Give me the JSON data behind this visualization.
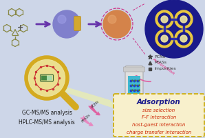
{
  "bg_color": "#cdd6e8",
  "adsorption_box": {
    "title": "Adsorption",
    "items": [
      "size selection",
      "F-F interaction",
      "host-guest interaction",
      "charge transfer interaction"
    ],
    "title_color": "#1a1a8c",
    "item_color": "#cc2200",
    "box_edge_color": "#ccaa00",
    "box_bg": "#f8f0cc"
  },
  "legend": {
    "items": [
      "PCNs",
      "PFASs",
      "Impurities"
    ],
    "markers": [
      "*",
      "^",
      "s"
    ],
    "color": "#444444"
  },
  "labels": {
    "gc": "GC-MS/MS analysis",
    "hplc": "HPLC-MS/MS analysis",
    "adsorption_label": "Adsorption"
  },
  "colors": {
    "purple_ball": "#8080cc",
    "orange_ball": "#d4834a",
    "framework_blue": "#1a1a8a",
    "framework_gold": "#e8c840",
    "framework_white": "#f0e8a0",
    "arrow_purple": "#6633aa",
    "magnifier_gold": "#d4aa20",
    "magnifier_fill": "#f0e8a0",
    "beam_yellow": "#ffff88",
    "syringe_gray": "#cccccc",
    "syringe_cyan": "#40b8d0",
    "pink": "#e060a0",
    "molecule_olive": "#888844",
    "molecule_dark": "#556644",
    "zoom_circle": "#cc3388"
  }
}
